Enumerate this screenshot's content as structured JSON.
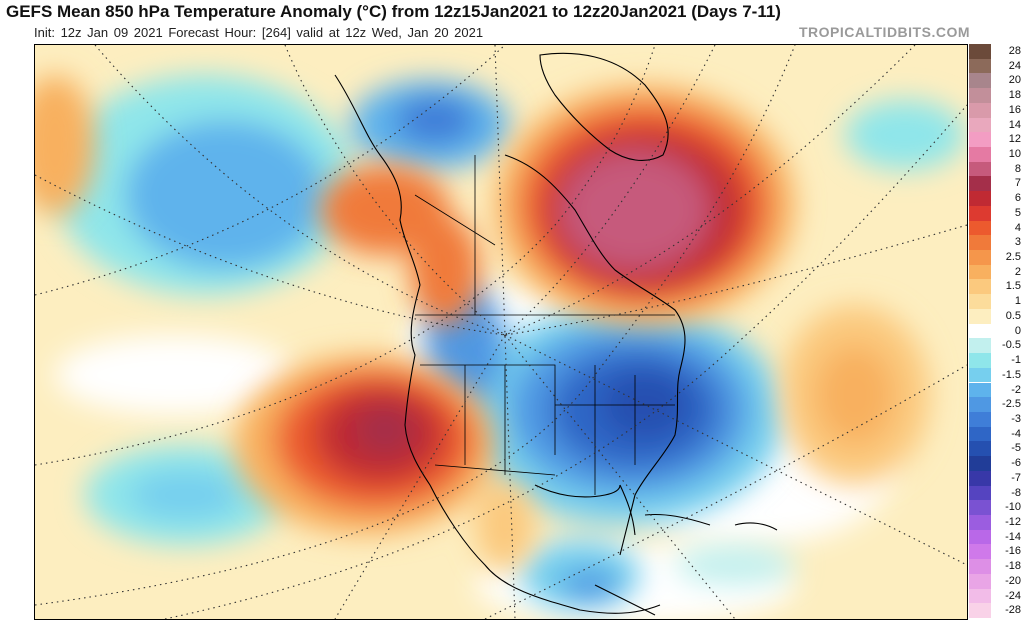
{
  "header": {
    "title": "GEFS Mean 850 hPa Temperature Anomaly (°C) from 12z15Jan2021 to 12z20Jan2021 (Days 7-11)",
    "subtitle": "Init: 12z Jan 09 2021   Forecast Hour: [264]   valid at 12z Wed, Jan 20 2021",
    "brand": "TROPICALTIDBITS.COM"
  },
  "map": {
    "region": "North America",
    "variable": "850 hPa Temperature Anomaly",
    "units": "°C",
    "features": [
      {
        "name": "warm-anomaly-greenland-eastern-canada",
        "sign": "positive"
      },
      {
        "name": "warm-anomaly-southwest-us-pacific",
        "sign": "positive"
      },
      {
        "name": "warm-anomaly-western-canada",
        "sign": "positive"
      },
      {
        "name": "warm-anomaly-central-atlantic",
        "sign": "positive"
      },
      {
        "name": "cold-anomaly-central-eastern-us",
        "sign": "negative"
      },
      {
        "name": "cold-anomaly-alaska-north-pacific",
        "sign": "negative"
      },
      {
        "name": "cold-anomaly-eastern-pacific",
        "sign": "negative"
      },
      {
        "name": "cold-anomaly-mexico",
        "sign": "negative"
      }
    ]
  },
  "colorbar": {
    "items": [
      {
        "label": "28",
        "color": "#6b4a3a"
      },
      {
        "label": "24",
        "color": "#8c6a5a"
      },
      {
        "label": "20",
        "color": "#a8858c"
      },
      {
        "label": "18",
        "color": "#c28f9a"
      },
      {
        "label": "16",
        "color": "#d99aaa"
      },
      {
        "label": "14",
        "color": "#e9a8bd"
      },
      {
        "label": "12",
        "color": "#f39dc3"
      },
      {
        "label": "10",
        "color": "#e57aa3"
      },
      {
        "label": "8",
        "color": "#c65a7c"
      },
      {
        "label": "7",
        "color": "#a42f4a"
      },
      {
        "label": "6",
        "color": "#c02a33"
      },
      {
        "label": "5",
        "color": "#dd3a30"
      },
      {
        "label": "4",
        "color": "#ec5a2e"
      },
      {
        "label": "3",
        "color": "#f07a3a"
      },
      {
        "label": "2.5",
        "color": "#f5964b"
      },
      {
        "label": "2",
        "color": "#f8b05f"
      },
      {
        "label": "1.5",
        "color": "#fbc97e"
      },
      {
        "label": "1",
        "color": "#fcdc9b"
      },
      {
        "label": "0.5",
        "color": "#fdeec0"
      },
      {
        "label": "0",
        "color": "#ffffff"
      },
      {
        "label": "-0.5",
        "color": "#c2f0ee"
      },
      {
        "label": "-1",
        "color": "#8fe6ea"
      },
      {
        "label": "-1.5",
        "color": "#76cfee"
      },
      {
        "label": "-2",
        "color": "#5eb3ec"
      },
      {
        "label": "-2.5",
        "color": "#4f98e3"
      },
      {
        "label": "-3",
        "color": "#3f7ed8"
      },
      {
        "label": "-4",
        "color": "#2f66c6"
      },
      {
        "label": "-5",
        "color": "#2550b0"
      },
      {
        "label": "-6",
        "color": "#213d98"
      },
      {
        "label": "-7",
        "color": "#3838a8"
      },
      {
        "label": "-8",
        "color": "#5544c0"
      },
      {
        "label": "-10",
        "color": "#7a52d2"
      },
      {
        "label": "-12",
        "color": "#9b5de0"
      },
      {
        "label": "-14",
        "color": "#b968e8"
      },
      {
        "label": "-16",
        "color": "#cf79ea"
      },
      {
        "label": "-18",
        "color": "#dd8fe6"
      },
      {
        "label": "-20",
        "color": "#e9a5e6"
      },
      {
        "label": "-24",
        "color": "#f2bce8"
      },
      {
        "label": "-28",
        "color": "#f9d2e8"
      }
    ]
  }
}
